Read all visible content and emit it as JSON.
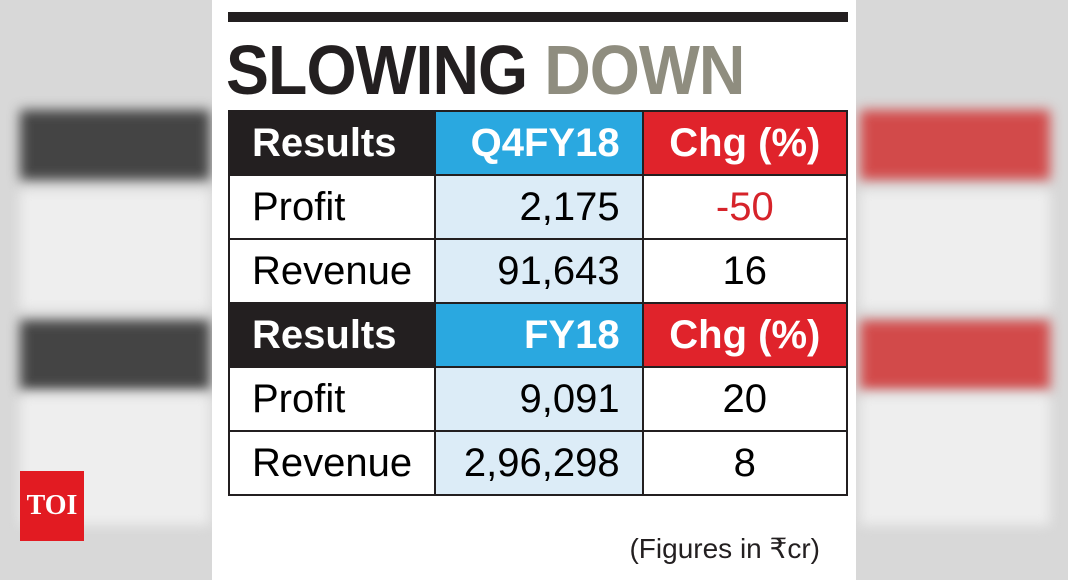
{
  "title": {
    "part1": "SLOWING",
    "part2": "DOWN"
  },
  "table": {
    "sections": [
      {
        "header": [
          "Results",
          "Q4FY18",
          "Chg (%)"
        ],
        "rows": [
          [
            "Profit",
            "2,175",
            "-50"
          ],
          [
            "Revenue",
            "91,643",
            "16"
          ]
        ]
      },
      {
        "header": [
          "Results",
          "FY18",
          "Chg (%)"
        ],
        "rows": [
          [
            "Profit",
            "9,091",
            "20"
          ],
          [
            "Revenue",
            "2,96,298",
            "8"
          ]
        ]
      }
    ]
  },
  "footnote": "(Figures in ₹cr)",
  "logo": "TOI"
}
